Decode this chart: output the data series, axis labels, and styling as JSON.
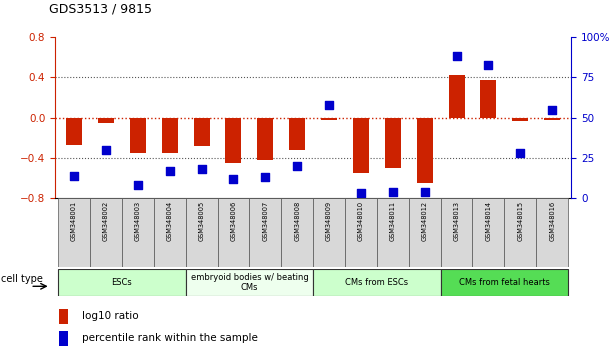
{
  "title": "GDS3513 / 9815",
  "samples": [
    "GSM348001",
    "GSM348002",
    "GSM348003",
    "GSM348004",
    "GSM348005",
    "GSM348006",
    "GSM348007",
    "GSM348008",
    "GSM348009",
    "GSM348010",
    "GSM348011",
    "GSM348012",
    "GSM348013",
    "GSM348014",
    "GSM348015",
    "GSM348016"
  ],
  "log10_ratio": [
    -0.27,
    -0.05,
    -0.35,
    -0.35,
    -0.28,
    -0.45,
    -0.42,
    -0.32,
    -0.02,
    -0.55,
    -0.5,
    -0.65,
    0.42,
    0.37,
    -0.03,
    -0.02
  ],
  "percentile_rank": [
    14,
    30,
    8,
    17,
    18,
    12,
    13,
    20,
    58,
    3,
    4,
    4,
    88,
    83,
    28,
    55
  ],
  "ylim_left": [
    -0.8,
    0.8
  ],
  "ylim_right": [
    0,
    100
  ],
  "yticks_left": [
    -0.8,
    -0.4,
    0.0,
    0.4,
    0.8
  ],
  "yticks_right": [
    0,
    25,
    50,
    75,
    100
  ],
  "ytick_labels_right": [
    "0",
    "25",
    "50",
    "75",
    "100%"
  ],
  "bar_color": "#cc2200",
  "dot_color": "#0000cc",
  "zero_line_color": "#cc2200",
  "dotted_line_color": "#555555",
  "cell_type_groups": [
    {
      "label": "ESCs",
      "start": 0,
      "end": 3,
      "color": "#ccffcc"
    },
    {
      "label": "embryoid bodies w/ beating\nCMs",
      "start": 4,
      "end": 7,
      "color": "#eeffee"
    },
    {
      "label": "CMs from ESCs",
      "start": 8,
      "end": 11,
      "color": "#ccffcc"
    },
    {
      "label": "CMs from fetal hearts",
      "start": 12,
      "end": 15,
      "color": "#55dd55"
    }
  ],
  "legend_items": [
    {
      "label": "log10 ratio",
      "color": "#cc2200"
    },
    {
      "label": "percentile rank within the sample",
      "color": "#0000cc"
    }
  ],
  "cell_type_label": "cell type",
  "bar_width": 0.5,
  "dot_size": 28,
  "axis_label_color_left": "#cc2200",
  "axis_label_color_right": "#0000cc",
  "background_color": "#ffffff",
  "plot_bg_color": "#ffffff"
}
